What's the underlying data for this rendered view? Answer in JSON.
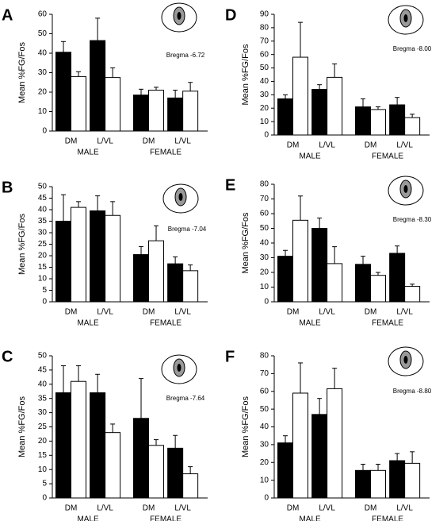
{
  "chart_data": [
    {
      "type": "bar",
      "panel_label": "A",
      "ylabel": "Mean %FG/Fos",
      "annotation": "Bregma -6.72",
      "categories": [
        "DM",
        "L/VL",
        "DM",
        "L/VL"
      ],
      "groups": [
        "MALE",
        "FEMALE"
      ],
      "series": [
        {
          "color": "#000000",
          "values": [
            40.5,
            46.5,
            18.5,
            17
          ],
          "errors": [
            5.5,
            11.5,
            3,
            4
          ]
        },
        {
          "color": "#ffffff",
          "values": [
            28,
            27.5,
            21,
            20.5
          ],
          "errors": [
            2.5,
            5,
            1.5,
            4.5
          ]
        }
      ],
      "ylim": [
        0,
        60
      ],
      "yticks": [
        0,
        10,
        20,
        30,
        40,
        50,
        60
      ]
    },
    {
      "type": "bar",
      "panel_label": "B",
      "ylabel": "Mean %FG/Fos",
      "annotation": "Bregma -7.04",
      "categories": [
        "DM",
        "L/VL",
        "DM",
        "L/VL"
      ],
      "groups": [
        "MALE",
        "FEMALE"
      ],
      "series": [
        {
          "color": "#000000",
          "values": [
            35,
            39.5,
            20.5,
            16.5
          ],
          "errors": [
            11.5,
            6.5,
            3.5,
            3
          ]
        },
        {
          "color": "#ffffff",
          "values": [
            41,
            37.5,
            26.5,
            13.5
          ],
          "errors": [
            2.5,
            6,
            6.5,
            2.5
          ]
        }
      ],
      "ylim": [
        0,
        50
      ],
      "yticks": [
        0,
        5,
        10,
        15,
        20,
        25,
        30,
        35,
        40,
        45,
        50
      ]
    },
    {
      "type": "bar",
      "panel_label": "C",
      "ylabel": "Mean %FG/Fos",
      "annotation": "Bregma -7.64",
      "categories": [
        "DM",
        "L/VL",
        "DM",
        "L/VL"
      ],
      "groups": [
        "MALE",
        "FEMALE"
      ],
      "series": [
        {
          "color": "#000000",
          "values": [
            37,
            37,
            28,
            17.5
          ],
          "errors": [
            9.5,
            6.5,
            14,
            4.5
          ]
        },
        {
          "color": "#ffffff",
          "values": [
            41,
            23,
            18.5,
            8.5
          ],
          "errors": [
            5.5,
            3,
            2,
            2.5
          ]
        }
      ],
      "ylim": [
        0,
        50
      ],
      "yticks": [
        0,
        5,
        10,
        15,
        20,
        25,
        30,
        35,
        40,
        45,
        50
      ]
    },
    {
      "type": "bar",
      "panel_label": "D",
      "ylabel": "Mean %FG/Fos",
      "annotation": "Bregma -8.00",
      "categories": [
        "DM",
        "L/VL",
        "DM",
        "L/VL"
      ],
      "groups": [
        "MALE",
        "FEMALE"
      ],
      "series": [
        {
          "color": "#000000",
          "values": [
            27,
            34,
            21,
            22.5
          ],
          "errors": [
            3,
            3.5,
            6,
            5.5
          ]
        },
        {
          "color": "#ffffff",
          "values": [
            58,
            43,
            19,
            13
          ],
          "errors": [
            26,
            10,
            2,
            2.5
          ]
        }
      ],
      "ylim": [
        0,
        90
      ],
      "yticks": [
        0,
        10,
        20,
        30,
        40,
        50,
        60,
        70,
        80,
        90
      ]
    },
    {
      "type": "bar",
      "panel_label": "E",
      "ylabel": "Mean %FG/Fos",
      "annotation": "Bregma -8.30",
      "categories": [
        "DM",
        "L/VL",
        "DM",
        "L/VL"
      ],
      "groups": [
        "MALE",
        "FEMALE"
      ],
      "series": [
        {
          "color": "#000000",
          "values": [
            31,
            50,
            25.5,
            33
          ],
          "errors": [
            4,
            7,
            5.5,
            5
          ]
        },
        {
          "color": "#ffffff",
          "values": [
            55.5,
            26,
            18,
            10.5
          ],
          "errors": [
            16.5,
            11.5,
            2,
            1.5
          ]
        }
      ],
      "ylim": [
        0,
        80
      ],
      "yticks": [
        0,
        10,
        20,
        30,
        40,
        50,
        60,
        70,
        80
      ]
    },
    {
      "type": "bar",
      "panel_label": "F",
      "ylabel": "Mean %FG/Fos",
      "annotation": "Bregma -8.80",
      "categories": [
        "DM",
        "L/VL",
        "DM",
        "L/VL"
      ],
      "groups": [
        "MALE",
        "FEMALE"
      ],
      "series": [
        {
          "color": "#000000",
          "values": [
            31,
            47,
            15.5,
            21
          ],
          "errors": [
            4,
            9,
            3.5,
            4
          ]
        },
        {
          "color": "#ffffff",
          "values": [
            59,
            61.5,
            15.5,
            19.5
          ],
          "errors": [
            17,
            11.5,
            3.5,
            6.5
          ]
        }
      ],
      "ylim": [
        0,
        80
      ],
      "yticks": [
        0,
        10,
        20,
        30,
        40,
        50,
        60,
        70,
        80
      ]
    }
  ]
}
